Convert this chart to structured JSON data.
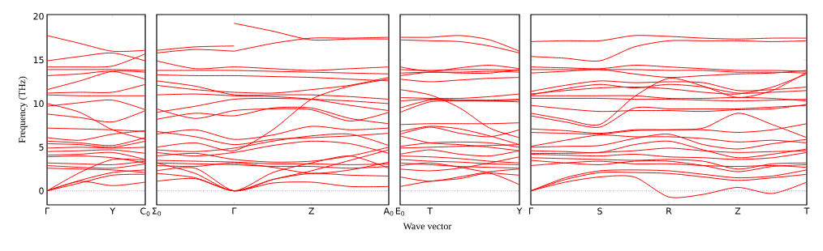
{
  "chart_data": [
    {
      "type": "line",
      "ylabel": "Frequency (THz)",
      "color": "#ff0000",
      "ylim": [
        -1.6,
        20.2
      ],
      "categories": [
        "Γ",
        null,
        "Y",
        "C$_{0}$"
      ],
      "yticks": [
        0,
        5,
        10,
        15,
        20
      ],
      "ref_lines": [
        {
          "axis": "y",
          "value": 0,
          "color": "#0000ff",
          "line_style": "dotted"
        }
      ],
      "series": [
        {
          "values": [
            17.8,
            16.9,
            16.0,
            16.1
          ]
        },
        {
          "values": [
            14.9,
            15.4,
            15.8,
            14.9
          ]
        },
        {
          "values": [
            14.2,
            14.2,
            14.3,
            15.7
          ]
        },
        {
          "values": [
            13.9,
            13.9,
            13.9,
            13.8
          ]
        },
        {
          "values": [
            13.2,
            13.4,
            13.7,
            12.8
          ]
        },
        {
          "values": [
            11.6,
            12.6,
            13.7,
            13.6
          ]
        },
        {
          "values": [
            11.2,
            11.3,
            11.3,
            12.2
          ]
        },
        {
          "values": [
            11.0,
            10.9,
            10.9,
            10.9
          ]
        },
        {
          "values": [
            10.0,
            9.0,
            7.0,
            5.9
          ]
        },
        {
          "values": [
            9.7,
            10.1,
            10.4,
            9.3
          ]
        },
        {
          "values": [
            8.8,
            8.4,
            7.9,
            9.2
          ]
        },
        {
          "values": [
            7.2,
            7.1,
            7.0,
            6.8
          ]
        },
        {
          "values": [
            6.1,
            5.8,
            6.5,
            6.9
          ]
        },
        {
          "values": [
            5.7,
            5.5,
            5.2,
            6.1
          ]
        },
        {
          "values": [
            5.4,
            5.3,
            5.0,
            5.7
          ]
        },
        {
          "values": [
            4.9,
            5.0,
            4.9,
            5.0
          ]
        },
        {
          "values": [
            4.5,
            4.6,
            4.7,
            4.3
          ]
        },
        {
          "values": [
            4.1,
            4.2,
            4.4,
            3.6
          ]
        },
        {
          "values": [
            3.9,
            4.0,
            3.8,
            3.2
          ]
        },
        {
          "values": [
            3.2,
            3.1,
            3.0,
            3.4
          ]
        },
        {
          "values": [
            2.9,
            2.7,
            2.6,
            3.1
          ]
        },
        {
          "values": [
            2.6,
            2.5,
            2.4,
            2.1
          ]
        },
        {
          "values": [
            0,
            2.1,
            3.6,
            3.5
          ]
        },
        {
          "values": [
            0,
            1.2,
            2.1,
            2.4
          ]
        },
        {
          "values": [
            0,
            0.9,
            1.8,
            1.9
          ]
        },
        {
          "values": [
            0,
            1.1,
            0.6,
            1.0
          ]
        }
      ]
    },
    {
      "type": "line",
      "color": "#ff0000",
      "ylim": [
        -1.6,
        20.2
      ],
      "tick_labels": "x",
      "categories": [
        "Σ$_{0}$",
        null,
        "Γ",
        null,
        "Z",
        null,
        "A$_{0}$"
      ],
      "yticks": [
        0,
        5,
        10,
        15,
        20
      ],
      "ref_lines": [
        {
          "axis": "y",
          "value": 0,
          "color": "#0000ff",
          "line_style": "dotted"
        }
      ],
      "series": [
        {
          "values": [
            16.1,
            16.5,
            16.6,
            null,
            null,
            null,
            null
          ]
        },
        {
          "values": [
            15.8,
            16.2,
            16.0,
            null,
            null,
            null,
            null
          ]
        },
        {
          "values": [
            null,
            null,
            19.2,
            18.3,
            17.3,
            17.4,
            17.4
          ]
        },
        {
          "values": [
            null,
            null,
            16.0,
            16.9,
            17.5,
            17.5,
            17.6
          ]
        },
        {
          "values": [
            14.9,
            14.0,
            14.2,
            14.0,
            13.8,
            14.0,
            14.2
          ]
        },
        {
          "values": [
            13.8,
            13.8,
            13.8,
            13.7,
            13.6,
            13.5,
            13.4
          ]
        },
        {
          "values": [
            13.3,
            13.2,
            13.2,
            13.1,
            13.0,
            12.8,
            12.6
          ]
        },
        {
          "values": [
            12.6,
            12.0,
            11.0,
            11.0,
            11.0,
            10.8,
            10.5
          ]
        },
        {
          "values": [
            12.1,
            11.6,
            11.3,
            11.2,
            11.6,
            12.1,
            13.0
          ]
        },
        {
          "values": [
            11.0,
            11.1,
            10.9,
            10.8,
            10.5,
            9.8,
            9.2
          ]
        },
        {
          "values": [
            9.0,
            9.7,
            10.5,
            10.6,
            10.5,
            10.3,
            10.0
          ]
        },
        {
          "values": [
            9.4,
            8.3,
            9.2,
            9.4,
            9.3,
            8.0,
            9.0
          ]
        },
        {
          "values": [
            8.2,
            8.9,
            8.6,
            9.5,
            9.5,
            8.3,
            7.7
          ]
        },
        {
          "values": [
            6.5,
            7.0,
            5.9,
            6.4,
            7.4,
            7.0,
            7.2
          ]
        },
        {
          "values": [
            6.8,
            6.2,
            5.3,
            5.9,
            6.1,
            6.3,
            6.6
          ]
        },
        {
          "values": [
            5.0,
            5.5,
            4.6,
            7.0,
            10.5,
            12.0,
            12.8
          ]
        },
        {
          "values": [
            4.7,
            4.5,
            4.9,
            5.7,
            6.3,
            6.5,
            5.2
          ]
        },
        {
          "values": [
            4.4,
            4.0,
            4.4,
            5.2,
            5.7,
            5.4,
            4.3
          ]
        },
        {
          "values": [
            4.0,
            4.3,
            3.6,
            3.3,
            3.4,
            4.0,
            5.0
          ]
        },
        {
          "values": [
            3.5,
            3.4,
            3.3,
            3.1,
            3.1,
            3.0,
            3.1
          ]
        },
        {
          "values": [
            3.2,
            3.1,
            3.0,
            2.8,
            2.8,
            2.6,
            2.8
          ]
        },
        {
          "values": [
            2.9,
            2.8,
            3.2,
            2.7,
            2.0,
            2.4,
            3.3
          ]
        },
        {
          "values": [
            2.3,
            2.6,
            0,
            1.3,
            2.3,
            3.5,
            4.7
          ]
        },
        {
          "values": [
            1.1,
            1.4,
            0,
            1.3,
            2.0,
            1.8,
            1.7
          ]
        },
        {
          "values": [
            2.0,
            1.5,
            0,
            0.9,
            1.0,
            0.5,
            0.5
          ]
        },
        {
          "values": [
            3.2,
            2.0,
            0,
            2.1,
            3.2,
            4.0,
            2.6
          ]
        }
      ]
    },
    {
      "type": "line",
      "xlabel": "Wave vector",
      "color": "#ff0000",
      "ylim": [
        -1.6,
        20.2
      ],
      "tick_labels": "x",
      "categories": [
        "E$_{0}$",
        "T",
        null,
        null,
        "Y"
      ],
      "yticks": [
        0,
        5,
        10,
        15,
        20
      ],
      "ref_lines": [
        {
          "axis": "y",
          "value": 0,
          "color": "#0000ff",
          "line_style": "dotted"
        }
      ],
      "series": [
        {
          "values": [
            17.6,
            17.6,
            17.8,
            17.3,
            16.0
          ]
        },
        {
          "values": [
            17.3,
            17.2,
            17.1,
            16.6,
            15.8
          ]
        },
        {
          "values": [
            14.2,
            13.7,
            14.1,
            14.4,
            14.0
          ]
        },
        {
          "values": [
            13.9,
            13.8,
            13.9,
            13.9,
            13.8
          ]
        },
        {
          "values": [
            13.5,
            13.6,
            13.6,
            13.7,
            13.6
          ]
        },
        {
          "values": [
            13.2,
            13.6,
            13.5,
            13.5,
            13.9
          ]
        },
        {
          "values": [
            12.8,
            12.5,
            12.7,
            12.9,
            13.0
          ]
        },
        {
          "values": [
            11.6,
            11.0,
            9.5,
            7.2,
            6.1
          ]
        },
        {
          "values": [
            10.7,
            10.6,
            10.6,
            10.8,
            11.1
          ]
        },
        {
          "values": [
            10.3,
            10.5,
            10.4,
            10.3,
            10.4
          ]
        },
        {
          "values": [
            9.5,
            10.4,
            10.4,
            10.4,
            10.5
          ]
        },
        {
          "values": [
            9.0,
            10.2,
            10.3,
            10.3,
            10.2
          ]
        },
        {
          "values": [
            7.6,
            7.7,
            7.7,
            7.7,
            7.8
          ]
        },
        {
          "values": [
            6.8,
            7.4,
            7.1,
            6.3,
            5.3
          ]
        },
        {
          "values": [
            6.5,
            7.3,
            6.6,
            6.2,
            7.0
          ]
        },
        {
          "values": [
            6.3,
            5.5,
            5.3,
            5.0,
            4.6
          ]
        },
        {
          "values": [
            5.1,
            5.5,
            5.6,
            5.5,
            5.0
          ]
        },
        {
          "values": [
            4.9,
            5.0,
            5.1,
            5.2,
            5.3
          ]
        },
        {
          "values": [
            4.2,
            4.7,
            4.2,
            4.0,
            4.6
          ]
        },
        {
          "values": [
            4.0,
            3.9,
            3.7,
            3.4,
            3.2
          ]
        },
        {
          "values": [
            3.6,
            3.4,
            3.3,
            3.1,
            3.0
          ]
        },
        {
          "values": [
            3.2,
            3.0,
            2.8,
            2.7,
            2.6
          ]
        },
        {
          "values": [
            2.9,
            3.2,
            2.7,
            2.1,
            1.8
          ]
        },
        {
          "values": [
            2.5,
            2.3,
            2.6,
            3.2,
            3.9
          ]
        },
        {
          "values": [
            1.6,
            1.1,
            1.6,
            2.2,
            2.5
          ]
        },
        {
          "values": [
            0.5,
            1.1,
            1.4,
            2.0,
            0.7
          ]
        }
      ]
    },
    {
      "type": "line",
      "color": "#ff0000",
      "ylim": [
        -1.6,
        20.2
      ],
      "tick_labels": "x",
      "categories": [
        "Γ",
        null,
        "S",
        null,
        "R",
        null,
        "Z",
        null,
        "T"
      ],
      "yticks": [
        0,
        5,
        10,
        15,
        20
      ],
      "ref_lines": [
        {
          "axis": "y",
          "value": 0,
          "color": "#0000ff",
          "line_style": "dotted"
        }
      ],
      "series": [
        {
          "values": [
            17.1,
            17.2,
            17.2,
            17.8,
            17.7,
            17.5,
            17.4,
            17.5,
            17.5
          ]
        },
        {
          "values": [
            15.4,
            15.2,
            14.9,
            16.5,
            17.2,
            17.2,
            17.2,
            17.1,
            17.2
          ]
        },
        {
          "values": [
            14.2,
            14.1,
            14.0,
            14.4,
            14.2,
            14.0,
            13.8,
            13.8,
            13.7
          ]
        },
        {
          "values": [
            13.9,
            13.9,
            13.9,
            13.9,
            13.8,
            13.8,
            13.6,
            13.6,
            13.5
          ]
        },
        {
          "values": [
            13.5,
            13.7,
            13.9,
            13.4,
            13.0,
            13.2,
            13.4,
            13.5,
            13.8
          ]
        },
        {
          "values": [
            11.4,
            12.1,
            12.6,
            12.4,
            12.5,
            12.4,
            11.5,
            11.6,
            11.9
          ]
        },
        {
          "values": [
            11.0,
            11.7,
            12.2,
            11.8,
            12.2,
            11.9,
            11.2,
            11.3,
            11.5
          ]
        },
        {
          "values": [
            11.1,
            11.5,
            11.8,
            11.9,
            11.7,
            11.3,
            11.1,
            11.9,
            13.4
          ]
        },
        {
          "values": [
            10.9,
            10.9,
            10.9,
            10.9,
            10.6,
            10.6,
            10.7,
            10.6,
            10.3
          ]
        },
        {
          "values": [
            10.6,
            10.6,
            10.6,
            10.5,
            10.5,
            10.4,
            10.3,
            10.4,
            10.5
          ]
        },
        {
          "values": [
            9.8,
            9.4,
            9.1,
            9.2,
            9.2,
            9.1,
            9.3,
            9.4,
            9.9
          ]
        },
        {
          "values": [
            8.9,
            8.2,
            7.6,
            10.8,
            12.9,
            12.0,
            10.7,
            11.5,
            13.6
          ]
        },
        {
          "values": [
            8.6,
            7.9,
            7.3,
            9.5,
            9.4,
            9.4,
            9.4,
            9.6,
            9.8
          ]
        },
        {
          "values": [
            7.1,
            6.9,
            6.6,
            7.0,
            7.0,
            7.0,
            6.7,
            7.0,
            7.7
          ]
        },
        {
          "values": [
            6.7,
            6.6,
            6.5,
            6.9,
            7.0,
            7.2,
            8.9,
            7.6,
            6.1
          ]
        },
        {
          "values": [
            5.1,
            5.8,
            6.4,
            6.2,
            6.2,
            6.0,
            5.6,
            5.8,
            5.5
          ]
        },
        {
          "values": [
            5.0,
            5.1,
            5.2,
            6.0,
            6.5,
            5.3,
            4.8,
            5.4,
            5.9
          ]
        },
        {
          "values": [
            4.6,
            4.5,
            4.4,
            5.3,
            5.7,
            4.7,
            3.8,
            4.2,
            4.8
          ]
        },
        {
          "values": [
            4.3,
            4.3,
            4.4,
            4.6,
            4.9,
            4.6,
            4.4,
            4.5,
            4.6
          ]
        },
        {
          "values": [
            4.2,
            4.1,
            4.0,
            4.2,
            3.9,
            3.8,
            3.6,
            3.8,
            4.4
          ]
        },
        {
          "values": [
            3.8,
            3.7,
            3.6,
            3.5,
            3.6,
            3.4,
            2.5,
            3.1,
            3.2
          ]
        },
        {
          "values": [
            3.5,
            3.2,
            3.0,
            3.4,
            3.4,
            2.9,
            2.2,
            2.8,
            3.0
          ]
        },
        {
          "values": [
            2.9,
            3.2,
            3.4,
            3.1,
            3.1,
            2.9,
            2.8,
            2.9,
            2.7
          ]
        },
        {
          "values": [
            0,
            1.5,
            2.3,
            2.4,
            2.3,
            1.9,
            1.5,
            1.7,
            2.4
          ]
        },
        {
          "values": [
            0,
            1.3,
            2.1,
            2.1,
            2.0,
            1.6,
            1.2,
            1.5,
            1.9
          ]
        },
        {
          "values": [
            0,
            1.0,
            1.6,
            1.6,
            -0.7,
            -0.4,
            0.4,
            -0.3,
            1.0
          ]
        }
      ]
    }
  ]
}
